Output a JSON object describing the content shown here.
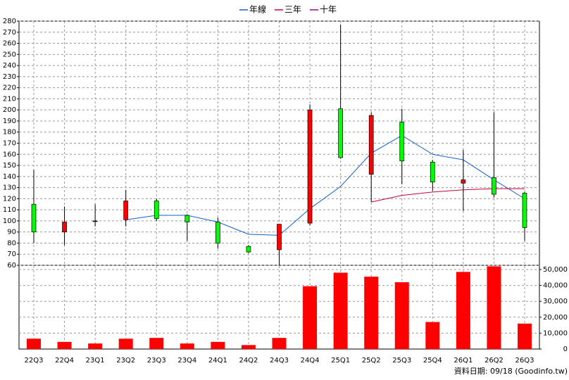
{
  "chart_data": [
    {
      "type": "candlestick",
      "categories": [
        "22Q3",
        "22Q4",
        "23Q1",
        "23Q2",
        "23Q3",
        "23Q4",
        "24Q1",
        "24Q2",
        "24Q3",
        "24Q4",
        "25Q1",
        "25Q2",
        "25Q3",
        "25Q4",
        "26Q1",
        "26Q2",
        "26Q3"
      ],
      "open": [
        115,
        90,
        100,
        101,
        118,
        105,
        99,
        77,
        74,
        98,
        201,
        142,
        189,
        153,
        134,
        139,
        125
      ],
      "high": [
        146,
        113,
        115,
        128,
        120,
        106,
        103,
        78,
        97,
        205,
        277,
        198,
        201,
        155,
        164,
        198,
        126
      ],
      "low": [
        80,
        78,
        95,
        95,
        100,
        82,
        75,
        71,
        60,
        96,
        156,
        117,
        133,
        127,
        109,
        121,
        82
      ],
      "close": [
        90,
        99,
        100,
        118,
        102,
        99,
        80,
        72,
        97,
        200,
        157,
        195,
        154,
        135,
        137,
        124,
        94
      ],
      "up_color": "#ff0000",
      "down_color": "#00ff00",
      "series": [
        {
          "name": "年線",
          "color": "#1060d0",
          "values": [
            null,
            null,
            null,
            101,
            105,
            105,
            99,
            88,
            87,
            111,
            131,
            161,
            177,
            160,
            155,
            137,
            120
          ]
        },
        {
          "name": "三年",
          "color": "#cc0033",
          "values": [
            null,
            null,
            null,
            null,
            null,
            null,
            null,
            null,
            null,
            null,
            null,
            117,
            123,
            126,
            128,
            129,
            129
          ]
        },
        {
          "name": "十年",
          "color": "#990099",
          "values": [
            null,
            null,
            null,
            null,
            null,
            null,
            null,
            null,
            null,
            null,
            null,
            null,
            null,
            null,
            null,
            null,
            null
          ]
        }
      ],
      "ylim": [
        60,
        280
      ],
      "yticks": [
        60,
        70,
        80,
        90,
        100,
        110,
        120,
        130,
        140,
        150,
        160,
        170,
        180,
        190,
        200,
        210,
        220,
        230,
        240,
        250,
        260,
        270,
        280
      ],
      "grid": true
    },
    {
      "type": "bar",
      "color": "#ff0000",
      "values": [
        6500,
        4500,
        3500,
        6500,
        7000,
        3500,
        4500,
        2500,
        7000,
        39500,
        48000,
        45500,
        42000,
        17000,
        48500,
        52000,
        16000
      ],
      "ylim": [
        0,
        52650
      ],
      "yticks": [
        0,
        {
          "value": 10000,
          "label": "10,000"
        },
        {
          "value": 20000,
          "label": "20,000"
        },
        {
          "value": 30000,
          "label": "30,000"
        },
        {
          "value": 40000,
          "label": "40,000"
        },
        {
          "value": 50000,
          "label": "50,000"
        }
      ]
    }
  ],
  "footer": "資料日期: 09/18 (Goodinfo.tw)"
}
